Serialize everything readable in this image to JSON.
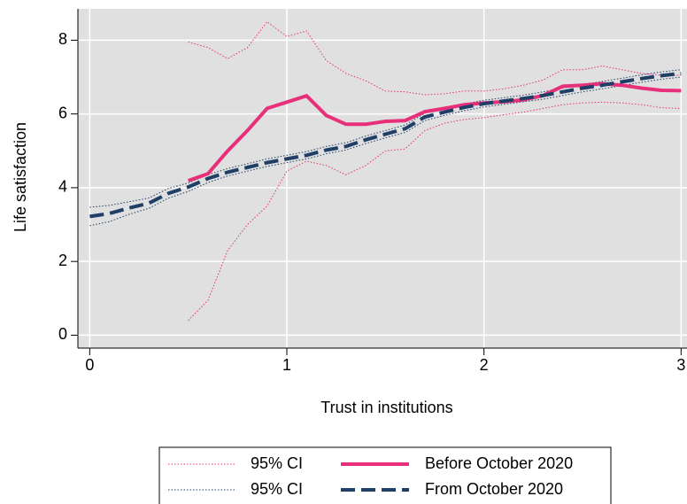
{
  "chart_data": {
    "type": "line",
    "x_label": "Trust in institutions",
    "y_label": "Life satisfaction",
    "xlim": [
      -0.06,
      3.03
    ],
    "ylim": [
      -0.35,
      8.85
    ],
    "xticks": [
      0,
      1,
      2,
      3
    ],
    "yticks": [
      0,
      2,
      4,
      6,
      8
    ],
    "grid": true,
    "series": [
      {
        "name": "Before October 2020",
        "ci_name": "95% CI",
        "color": "#e8307a",
        "dash": false,
        "x": [
          0.5,
          0.6,
          0.7,
          0.8,
          0.9,
          1.0,
          1.1,
          1.2,
          1.3,
          1.4,
          1.5,
          1.6,
          1.7,
          1.8,
          1.9,
          2.0,
          2.1,
          2.2,
          2.3,
          2.4,
          2.5,
          2.6,
          2.7,
          2.8,
          2.9,
          3.0
        ],
        "values": [
          4.19,
          4.38,
          5.0,
          5.55,
          6.15,
          6.32,
          6.49,
          5.96,
          5.72,
          5.72,
          5.8,
          5.82,
          6.06,
          6.15,
          6.25,
          6.3,
          6.33,
          6.38,
          6.5,
          6.75,
          6.78,
          6.82,
          6.78,
          6.7,
          6.64,
          6.63
        ],
        "ci_upper": [
          7.95,
          7.8,
          7.5,
          7.8,
          8.5,
          8.1,
          8.25,
          7.45,
          7.1,
          6.9,
          6.62,
          6.6,
          6.52,
          6.55,
          6.62,
          6.62,
          6.68,
          6.78,
          6.92,
          7.2,
          7.2,
          7.3,
          7.2,
          7.1,
          7.05,
          7.05
        ],
        "ci_lower": [
          0.4,
          0.95,
          2.3,
          3.0,
          3.5,
          4.45,
          4.72,
          4.6,
          4.35,
          4.6,
          5.0,
          5.05,
          5.55,
          5.75,
          5.85,
          5.9,
          5.98,
          6.05,
          6.15,
          6.25,
          6.3,
          6.32,
          6.3,
          6.25,
          6.17,
          6.15
        ]
      },
      {
        "name": "From October 2020",
        "ci_name": "95% CI",
        "color": "#1f3f66",
        "dash": true,
        "x": [
          0,
          0.1,
          0.2,
          0.3,
          0.4,
          0.5,
          0.6,
          0.7,
          0.8,
          0.9,
          1.0,
          1.1,
          1.2,
          1.3,
          1.4,
          1.5,
          1.6,
          1.7,
          1.8,
          1.9,
          2.0,
          2.1,
          2.2,
          2.3,
          2.4,
          2.5,
          2.6,
          2.7,
          2.8,
          2.9,
          3.0
        ],
        "values": [
          3.22,
          3.3,
          3.45,
          3.58,
          3.85,
          4.02,
          4.25,
          4.42,
          4.55,
          4.68,
          4.78,
          4.88,
          5.02,
          5.12,
          5.3,
          5.45,
          5.6,
          5.92,
          6.05,
          6.18,
          6.28,
          6.35,
          6.42,
          6.5,
          6.6,
          6.7,
          6.78,
          6.87,
          6.96,
          7.04,
          7.1
        ],
        "ci_upper": [
          3.47,
          3.52,
          3.62,
          3.72,
          3.98,
          4.13,
          4.35,
          4.52,
          4.65,
          4.78,
          4.88,
          4.98,
          5.12,
          5.22,
          5.4,
          5.55,
          5.7,
          6.02,
          6.14,
          6.27,
          6.37,
          6.44,
          6.51,
          6.6,
          6.7,
          6.8,
          6.88,
          6.97,
          7.06,
          7.14,
          7.2
        ],
        "ci_lower": [
          2.97,
          3.08,
          3.28,
          3.44,
          3.72,
          3.9,
          4.14,
          4.32,
          4.45,
          4.58,
          4.68,
          4.78,
          4.92,
          5.02,
          5.2,
          5.35,
          5.5,
          5.82,
          5.96,
          6.09,
          6.19,
          6.26,
          6.33,
          6.4,
          6.5,
          6.6,
          6.68,
          6.77,
          6.86,
          6.94,
          7.0
        ]
      }
    ]
  }
}
